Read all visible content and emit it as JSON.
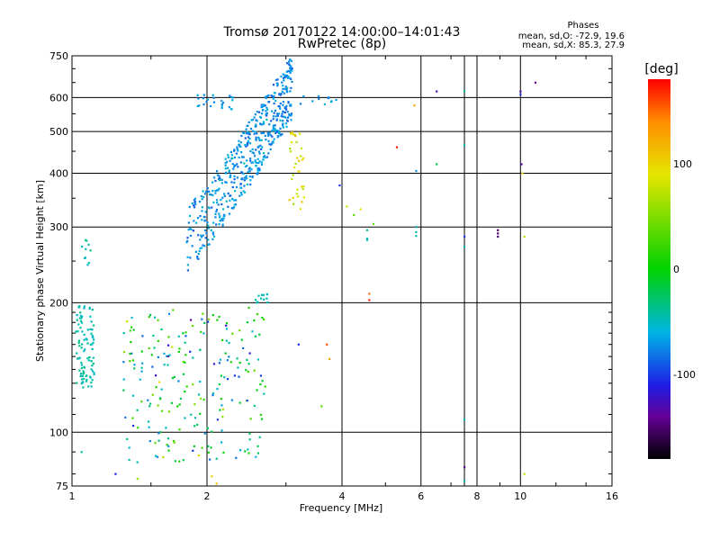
{
  "chart_data": {
    "type": "scatter",
    "title": "Tromsø 20170122 14:00:00–14:01:43",
    "subtitle": "RwPretec (8p)",
    "xlabel": "Frequency [MHz]",
    "ylabel": "Stationary phase Virtual Height [km]",
    "xscale": "log",
    "yscale": "log",
    "xlim": [
      1,
      16
    ],
    "ylim": [
      75,
      750
    ],
    "xticks": [
      1,
      2,
      4,
      6,
      8,
      10,
      16
    ],
    "xtick_labels": [
      "1",
      "2",
      "4",
      "6",
      "8",
      "10",
      "16"
    ],
    "xgrid": [
      2,
      4,
      6,
      7.5,
      8,
      10,
      16
    ],
    "yticks": [
      75,
      100,
      200,
      300,
      400,
      500,
      600,
      750
    ],
    "ytick_labels": [
      "75",
      "100",
      "200",
      "300",
      "400",
      "500",
      "600",
      "750"
    ],
    "ygrid": [
      100,
      200,
      300,
      400,
      500,
      600
    ],
    "grid": true,
    "legend_position": "top-right",
    "stats": {
      "heading": "Phases",
      "line_o": "mean, sd,O: -72.9, 19.6",
      "line_x": "mean, sd,X:  85.3, 27.9"
    },
    "colorbar": {
      "label": "[deg]",
      "ticks": [
        100,
        0,
        -100
      ],
      "tick_labels": [
        "100",
        "0",
        "-100"
      ],
      "range": [
        -180,
        180
      ],
      "colormap": "rainbow (black at -180 → violet → blue → cyan → green → yellow → red at 180)"
    },
    "clusters": [
      {
        "name": "O-trace main",
        "x": [
          1.75,
          3.1
        ],
        "y": [
          280,
          640
        ],
        "phase_mean": -72,
        "phase_sd": 18,
        "count": 520
      },
      {
        "name": "O-trace upper-left",
        "x": [
          1.9,
          2.3
        ],
        "y": [
          560,
          610
        ],
        "phase_mean": -72,
        "phase_sd": 15,
        "count": 25
      },
      {
        "name": "X-trace",
        "x": [
          3.05,
          3.3
        ],
        "y": [
          330,
          500
        ],
        "phase_mean": 85,
        "phase_sd": 28,
        "count": 35
      },
      {
        "name": "O-trace near 3.5 MHz",
        "x": [
          3.2,
          3.9
        ],
        "y": [
          570,
          620
        ],
        "phase_mean": -65,
        "phase_sd": 20,
        "count": 12
      },
      {
        "name": "low-frequency cyan trace",
        "x": [
          1.02,
          1.12
        ],
        "y": [
          125,
          200
        ],
        "phase_mean": -45,
        "phase_sd": 10,
        "count": 95
      },
      {
        "name": "low-frequency upper",
        "x": [
          1.04,
          1.1
        ],
        "y": [
          245,
          280
        ],
        "phase_mean": -45,
        "phase_sd": 10,
        "count": 10
      },
      {
        "name": "E-region mixed",
        "x": [
          1.3,
          2.7
        ],
        "y": [
          85,
          195
        ],
        "phase_mean": -20,
        "phase_sd": 80,
        "count": 230
      },
      {
        "name": "cyan patch 2.6 MHz",
        "x": [
          2.55,
          2.75
        ],
        "y": [
          200,
          210
        ],
        "phase_mean": -45,
        "phase_sd": 8,
        "count": 12
      }
    ],
    "points": [
      {
        "x": 1.05,
        "y": 90,
        "phase": -40
      },
      {
        "x": 1.25,
        "y": 80,
        "phase": -110
      },
      {
        "x": 1.4,
        "y": 78,
        "phase": 60
      },
      {
        "x": 1.95,
        "y": 92,
        "phase": 30
      },
      {
        "x": 2.05,
        "y": 79,
        "phase": 100
      },
      {
        "x": 2.1,
        "y": 76,
        "phase": 110
      },
      {
        "x": 3.2,
        "y": 160,
        "phase": -110
      },
      {
        "x": 3.7,
        "y": 160,
        "phase": 160
      },
      {
        "x": 3.75,
        "y": 148,
        "phase": 130
      },
      {
        "x": 3.6,
        "y": 115,
        "phase": 30
      },
      {
        "x": 3.95,
        "y": 375,
        "phase": -100
      },
      {
        "x": 4.1,
        "y": 335,
        "phase": 80
      },
      {
        "x": 4.25,
        "y": 320,
        "phase": 40
      },
      {
        "x": 4.4,
        "y": 330,
        "phase": 90
      },
      {
        "x": 4.55,
        "y": 295,
        "phase": -45
      },
      {
        "x": 4.55,
        "y": 282,
        "phase": -45
      },
      {
        "x": 4.55,
        "y": 280,
        "phase": -45
      },
      {
        "x": 4.7,
        "y": 305,
        "phase": 40
      },
      {
        "x": 4.6,
        "y": 210,
        "phase": 150
      },
      {
        "x": 4.6,
        "y": 203,
        "phase": 170
      },
      {
        "x": 5.3,
        "y": 460,
        "phase": 175
      },
      {
        "x": 5.8,
        "y": 575,
        "phase": 130
      },
      {
        "x": 5.85,
        "y": 405,
        "phase": -70
      },
      {
        "x": 5.85,
        "y": 300,
        "phase": -45
      },
      {
        "x": 5.85,
        "y": 292,
        "phase": -45
      },
      {
        "x": 5.85,
        "y": 286,
        "phase": -45
      },
      {
        "x": 6.5,
        "y": 620,
        "phase": -130
      },
      {
        "x": 6.5,
        "y": 420,
        "phase": -20
      },
      {
        "x": 7.5,
        "y": 620,
        "phase": -40
      },
      {
        "x": 7.5,
        "y": 465,
        "phase": -40
      },
      {
        "x": 7.5,
        "y": 285,
        "phase": -100
      },
      {
        "x": 7.5,
        "y": 270,
        "phase": -45
      },
      {
        "x": 7.5,
        "y": 107,
        "phase": -45
      },
      {
        "x": 7.5,
        "y": 83,
        "phase": -135
      },
      {
        "x": 7.5,
        "y": 77,
        "phase": -45
      },
      {
        "x": 8.9,
        "y": 295,
        "phase": -150
      },
      {
        "x": 8.9,
        "y": 290,
        "phase": -150
      },
      {
        "x": 8.9,
        "y": 285,
        "phase": -150
      },
      {
        "x": 10.0,
        "y": 620,
        "phase": -130
      },
      {
        "x": 10.0,
        "y": 610,
        "phase": -100
      },
      {
        "x": 10.05,
        "y": 420,
        "phase": -130
      },
      {
        "x": 10.1,
        "y": 400,
        "phase": 95
      },
      {
        "x": 10.2,
        "y": 285,
        "phase": 70
      },
      {
        "x": 10.2,
        "y": 80,
        "phase": 80
      },
      {
        "x": 10.8,
        "y": 650,
        "phase": -140
      }
    ]
  }
}
